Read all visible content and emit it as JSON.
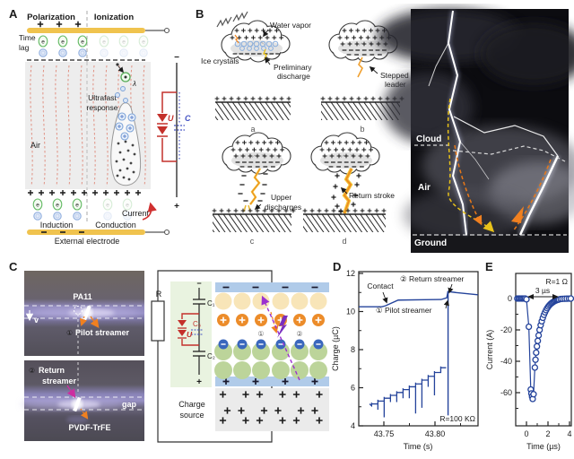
{
  "colors": {
    "curve_navy": "#24439b",
    "electrode_yellow": "#f0c34e",
    "diode_red": "#c4302b",
    "capacitor_blue": "#4553c4",
    "field_line_red": "#e09284",
    "orange": "#f08a28",
    "purple": "#9b30d0",
    "magenta": "#cc2fa0",
    "photo_band": "#9a93c9"
  },
  "panels": {
    "a": "A",
    "b": "B",
    "c": "C",
    "d": "D",
    "e": "E"
  },
  "panel_a": {
    "polarization": "Polarization",
    "ionization": "Ionization",
    "time_line1": "Time",
    "time_line2": "lag",
    "air": "Air",
    "ultrafast_line1": "Ultrafast",
    "ultrafast_line2": "response",
    "lambda": "λ",
    "electron": "e",
    "u": "U",
    "c": "C",
    "minus": "−",
    "plus": "+",
    "current": "Current",
    "induction": "Induction",
    "conduction": "Conduction",
    "external_electrode": "External electrode"
  },
  "panel_b": {
    "water_vapor": "Water vapor",
    "ice_crystals": "Ice crystals",
    "preliminary_line1": "Preliminary",
    "preliminary_line2": "discharge",
    "stepped_line1": "Stepped",
    "stepped_line2": "leader",
    "upper_line1": "Upper",
    "upper_line2": "discharges",
    "return_stroke": "Return stroke",
    "label_a": "a",
    "label_b": "b",
    "label_c": "c",
    "label_d": "d",
    "photo": {
      "cloud": "Cloud",
      "air": "Air",
      "ground": "Ground"
    }
  },
  "panel_c": {
    "pa11": "PA11",
    "v": "v",
    "num1": "①",
    "pilot": "Pilot streamer",
    "num2": "②",
    "return_line1": "Return",
    "return_line2": "streamer",
    "gap": "gap",
    "pvdf": "PVDF-TrFE",
    "r": "R",
    "minus": "−",
    "plus": "+",
    "c1": "C₁",
    "c2": "C₂",
    "c3": "C₃",
    "u": "U",
    "charge_line1": "Charge",
    "charge_line2": "source",
    "stack_num1": "①",
    "stack_num2": "②"
  },
  "chart_data": [
    {
      "type": "line",
      "panel": "D",
      "xlabel": "Time (s)",
      "ylabel": "Charge (µC)",
      "xlim": [
        43.725,
        43.842
      ],
      "ylim": [
        4,
        12
      ],
      "xticks": [
        {
          "label": "43.75",
          "v": 43.75
        },
        {
          "label": "43.80",
          "v": 43.8
        }
      ],
      "yticks": [
        {
          "label": "12",
          "v": 12
        },
        {
          "label": "10",
          "v": 10
        },
        {
          "label": "8",
          "v": 8
        },
        {
          "label": "6",
          "v": 6
        },
        {
          "label": "4",
          "v": 4
        }
      ],
      "xticks_minor": [
        43.775,
        43.825
      ],
      "yticks_minor": [
        5,
        7,
        9,
        11
      ],
      "annotations": {
        "contact": "Contact",
        "return_streamer": "② Return streamer",
        "pilot_streamer": "① Pilot streamer",
        "resistor": "R=100 KΩ"
      },
      "series": [
        {
          "name": "charge-main",
          "points": [
            [
              43.7255,
              10.25
            ],
            [
              43.748,
              10.25
            ],
            [
              43.7515,
              10.3
            ],
            [
              43.764,
              10.6
            ],
            [
              43.79,
              10.62
            ],
            [
              43.806,
              10.63
            ],
            [
              43.8115,
              10.72
            ],
            [
              43.8128,
              11.08
            ]
          ]
        },
        {
          "name": "return-drop",
          "points": [
            [
              43.8128,
              11.08
            ],
            [
              43.8128,
              4.55
            ]
          ]
        },
        {
          "name": "post-return",
          "points": [
            [
              43.8128,
              11.05
            ],
            [
              43.82,
              11.0
            ],
            [
              43.842,
              10.88
            ]
          ]
        }
      ],
      "sawtooth": {
        "name": "pilot-charging",
        "x0": 43.738,
        "step": 0.00615,
        "steps": [
          {
            "base": 5.15,
            "dip": 0.1
          },
          {
            "base": 5.3,
            "dip": 0.45
          },
          {
            "base": 5.45,
            "dip": 1.0
          },
          {
            "base": 5.6,
            "dip": 0.35
          },
          {
            "base": 5.75,
            "dip": 0.5
          },
          {
            "base": 5.9,
            "dip": 0.45
          },
          {
            "base": 6.05,
            "dip": 0.6
          },
          {
            "base": 6.2,
            "dip": 1.55
          },
          {
            "base": 6.4,
            "dip": 1.45
          },
          {
            "base": 6.6,
            "dip": 0.55
          },
          {
            "base": 6.8,
            "dip": 1.2
          },
          {
            "base": 7.05,
            "dip": 0.0
          }
        ]
      }
    },
    {
      "type": "scatter-line",
      "panel": "E",
      "xlabel": "Time (µs)",
      "ylabel": "Current (A)",
      "xlim": [
        -1,
        4.17
      ],
      "ylim": [
        -81,
        16
      ],
      "xticks": [
        {
          "label": "0",
          "v": 0
        },
        {
          "label": "2",
          "v": 2
        },
        {
          "label": "4",
          "v": 4
        }
      ],
      "yticks": [
        {
          "label": "0",
          "v": 0
        },
        {
          "label": "-20",
          "v": -20
        },
        {
          "label": "-40",
          "v": -40
        },
        {
          "label": "-60",
          "v": -60
        }
      ],
      "xticks_minor": [
        1,
        3
      ],
      "yticks_minor": [
        -10,
        -30,
        -50,
        -70
      ],
      "annotations": {
        "resistor": "R=1 Ω",
        "pulse_width": "3 µs"
      },
      "points": [
        [
          -0.85,
          0
        ],
        [
          -0.72,
          0
        ],
        [
          -0.6,
          0
        ],
        [
          -0.48,
          0
        ],
        [
          -0.36,
          0
        ],
        [
          -0.24,
          0
        ],
        [
          -0.12,
          0
        ],
        [
          0,
          -0.5
        ],
        [
          0.22,
          -18
        ],
        [
          0.4,
          -58
        ],
        [
          0.46,
          -60.5
        ],
        [
          0.52,
          -62.5
        ],
        [
          0.58,
          -64
        ],
        [
          0.66,
          -61
        ],
        [
          0.78,
          -44
        ],
        [
          0.84,
          -39
        ],
        [
          0.9,
          -34.5
        ],
        [
          0.97,
          -30.5
        ],
        [
          1.05,
          -27
        ],
        [
          1.13,
          -23.5
        ],
        [
          1.22,
          -20
        ],
        [
          1.32,
          -17
        ],
        [
          1.42,
          -14.5
        ],
        [
          1.52,
          -12.3
        ],
        [
          1.62,
          -10.4
        ],
        [
          1.72,
          -8.8
        ],
        [
          1.82,
          -7.4
        ],
        [
          1.92,
          -6.2
        ],
        [
          2.02,
          -5.2
        ],
        [
          2.12,
          -4.3
        ],
        [
          2.22,
          -3.6
        ],
        [
          2.32,
          -3
        ],
        [
          2.42,
          -2.5
        ],
        [
          2.52,
          -2
        ],
        [
          2.62,
          -1.6
        ],
        [
          2.72,
          -1.3
        ],
        [
          2.82,
          -1
        ],
        [
          2.92,
          -0.8
        ],
        [
          3.02,
          -0.6
        ],
        [
          3.18,
          -0.3
        ],
        [
          3.35,
          -0.2
        ],
        [
          3.55,
          -0.15
        ],
        [
          3.75,
          -0.1
        ],
        [
          3.95,
          -0.05
        ],
        [
          4.12,
          0
        ]
      ]
    }
  ]
}
